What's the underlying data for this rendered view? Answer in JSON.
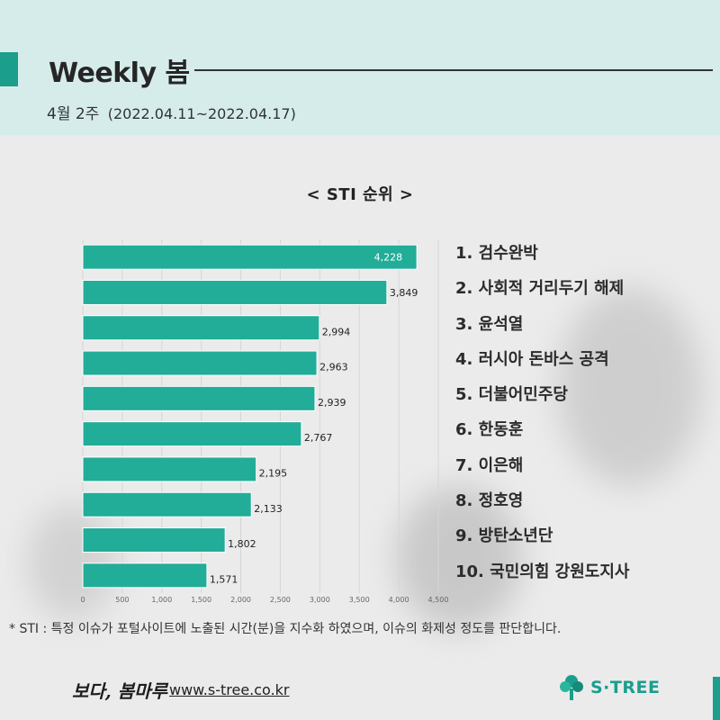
{
  "header": {
    "title": "Weekly 봄",
    "week": "4월 2주",
    "range": "(2022.04.11~2022.04.17)"
  },
  "chart_title": "< STI 순위 >",
  "colors": {
    "accent": "#1b9e8c",
    "bar": "#21ad98",
    "header_bg": "#d5ecea"
  },
  "chart_data": {
    "type": "bar",
    "orientation": "horizontal",
    "categories": [
      "1",
      "2",
      "3",
      "4",
      "5",
      "6",
      "7",
      "8",
      "9",
      "10"
    ],
    "values": [
      4228,
      3849,
      2994,
      2963,
      2939,
      2767,
      2195,
      2133,
      1802,
      1571
    ],
    "value_labels": [
      "4,228",
      "3,849",
      "2,994",
      "2,963",
      "2,939",
      "2,767",
      "2,195",
      "2,133",
      "1,802",
      "1,571"
    ],
    "xlim": [
      0,
      4500
    ],
    "x_ticks": [
      "0",
      "500",
      "1,000",
      "1,500",
      "2,000",
      "2,500",
      "3,000",
      "3,500",
      "4,000",
      "4,500"
    ],
    "grid": true
  },
  "ranking": [
    "1. 검수완박",
    "2. 사회적 거리두기 해제",
    "3. 윤석열",
    "4. 러시아 돈바스 공격",
    "5. 더불어민주당",
    "6. 한동훈",
    "7. 이은해",
    "8. 정호영",
    "9. 방탄소년단",
    "10. 국민의힘 강원도지사"
  ],
  "footnote": "* STI : 특정 이슈가 포털사이트에 노출된 시간(분)을 지수화 하였으며, 이슈의 화제성 정도를 판단합니다.",
  "footer": {
    "brand_script": "보다, 봄마루",
    "website": "www.s-tree.co.kr",
    "logo_text": "S·TREE",
    "logo_icon": "tree-icon"
  }
}
